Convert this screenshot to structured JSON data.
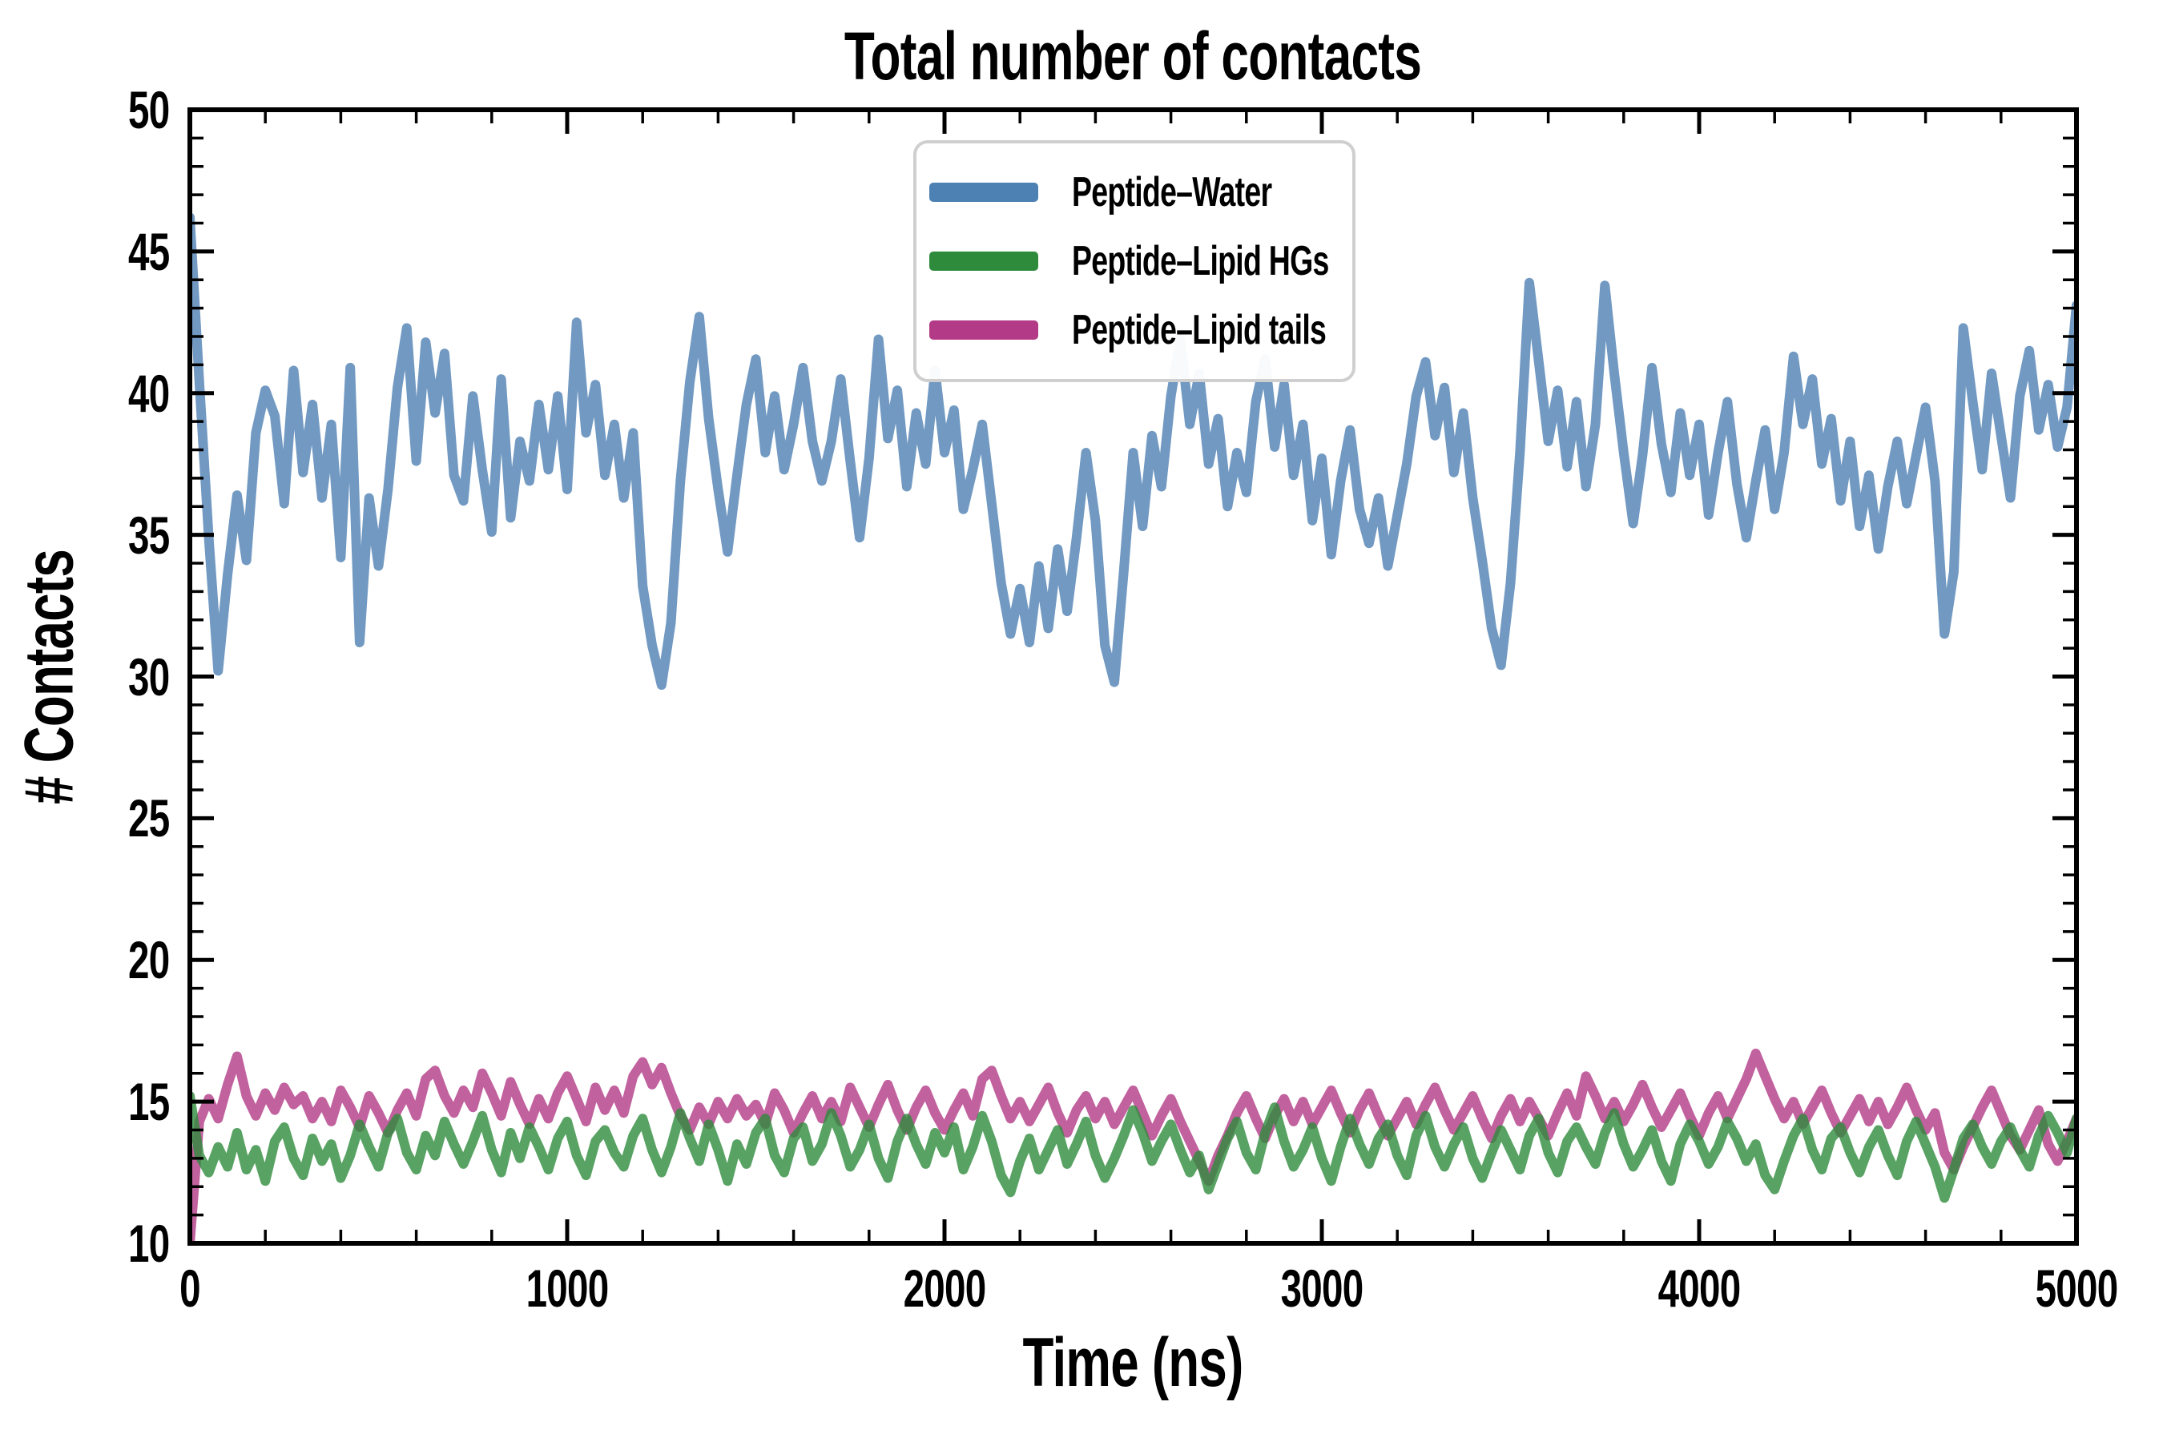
{
  "figure": {
    "background": "#FFFFFF",
    "axes_color": "#000000"
  },
  "chart_data": {
    "type": "line",
    "title": "Total number of contacts",
    "xlabel": "Time (ns)",
    "ylabel": "# Contacts",
    "x_range": [
      0,
      5000
    ],
    "y_range": [
      10,
      50
    ],
    "x_major_tick_step": 1000,
    "x_minor_tick_step": 200,
    "y_major_tick_step": 5,
    "y_minor_tick_step": 1,
    "x_tick_labels": [
      "0",
      "1000",
      "2000",
      "3000",
      "4000",
      "5000"
    ],
    "y_tick_labels": [
      "10",
      "15",
      "20",
      "25",
      "30",
      "35",
      "40",
      "45",
      "50"
    ],
    "grid": false,
    "ticks": {
      "direction": "in",
      "sides": [
        "top",
        "bottom",
        "left",
        "right"
      ]
    },
    "legend": {
      "position": "upper center",
      "border_color": "#CFCFCF",
      "background": "#FFFFFF"
    },
    "x_step_ns": 25,
    "line_width": 12,
    "line_opacity": 0.8,
    "draw_order": [
      0,
      2,
      1
    ],
    "series": [
      {
        "name": "Peptide–Water",
        "color": "#4D80B3",
        "mean_level": 37.5,
        "values": [
          46.2,
          40.4,
          34.9,
          30.2,
          33.6,
          36.4,
          34.1,
          38.6,
          40.1,
          39.2,
          36.1,
          40.8,
          37.2,
          39.6,
          36.3,
          38.9,
          34.2,
          40.9,
          31.2,
          36.3,
          33.9,
          36.6,
          40.2,
          42.3,
          37.6,
          41.8,
          39.3,
          41.4,
          37.1,
          36.2,
          39.9,
          37.3,
          35.1,
          40.5,
          35.6,
          38.3,
          36.9,
          39.6,
          37.3,
          39.9,
          36.6,
          42.5,
          38.6,
          40.3,
          37.1,
          38.9,
          36.3,
          38.6,
          33.2,
          31.1,
          29.7,
          31.9,
          36.9,
          40.4,
          42.7,
          39.1,
          36.6,
          34.4,
          37.1,
          39.6,
          41.2,
          37.9,
          39.9,
          37.3,
          38.9,
          40.9,
          38.3,
          36.9,
          38.3,
          40.5,
          37.6,
          34.9,
          37.7,
          41.9,
          38.4,
          40.1,
          36.7,
          39.3,
          37.5,
          40.8,
          37.9,
          39.4,
          35.9,
          37.3,
          38.9,
          36.1,
          33.3,
          31.5,
          33.1,
          31.2,
          33.9,
          31.7,
          34.5,
          32.3,
          34.9,
          37.9,
          35.5,
          31.1,
          29.8,
          33.7,
          37.9,
          35.3,
          38.5,
          36.7,
          39.9,
          41.9,
          38.9,
          40.7,
          37.5,
          39.1,
          36.0,
          37.9,
          36.5,
          39.7,
          41.2,
          38.1,
          40.3,
          37.1,
          38.9,
          35.5,
          37.7,
          34.3,
          36.9,
          38.7,
          35.9,
          34.7,
          36.3,
          33.9,
          35.7,
          37.5,
          39.9,
          41.1,
          38.5,
          40.2,
          37.2,
          39.3,
          36.3,
          34.1,
          31.7,
          30.4,
          33.3,
          37.9,
          43.9,
          41.1,
          38.3,
          40.1,
          37.4,
          39.7,
          36.7,
          38.9,
          43.8,
          40.7,
          37.9,
          35.4,
          37.8,
          40.9,
          38.2,
          36.5,
          39.3,
          37.1,
          38.9,
          35.7,
          37.9,
          39.7,
          36.8,
          34.9,
          36.9,
          38.7,
          35.9,
          37.9,
          41.3,
          38.9,
          40.5,
          37.5,
          39.1,
          36.2,
          38.3,
          35.3,
          37.1,
          34.5,
          36.7,
          38.3,
          36.1,
          37.8,
          39.5,
          36.9,
          31.5,
          33.7,
          42.3,
          39.7,
          37.3,
          40.7,
          38.5,
          36.3,
          39.9,
          41.5,
          38.7,
          40.3,
          38.1,
          39.5,
          43.1
        ]
      },
      {
        "name": "Peptide–Lipid HGs",
        "color": "#2E8B3C",
        "mean_level": 13.3,
        "values": [
          15.2,
          13.1,
          12.5,
          13.4,
          12.7,
          13.9,
          12.6,
          13.3,
          12.2,
          13.6,
          14.1,
          13.0,
          12.4,
          13.7,
          12.9,
          13.5,
          12.3,
          13.1,
          14.2,
          13.4,
          12.7,
          13.9,
          14.4,
          13.2,
          12.6,
          13.8,
          13.1,
          14.3,
          13.5,
          12.8,
          13.6,
          14.5,
          13.3,
          12.5,
          13.9,
          13.0,
          14.1,
          13.4,
          12.6,
          13.7,
          14.3,
          13.1,
          12.4,
          13.6,
          14.0,
          13.2,
          12.7,
          13.8,
          14.4,
          13.3,
          12.5,
          13.4,
          14.6,
          13.7,
          12.9,
          14.2,
          13.3,
          12.2,
          13.5,
          12.8,
          13.9,
          14.4,
          13.1,
          12.5,
          13.7,
          14.1,
          12.9,
          13.5,
          14.6,
          13.8,
          12.7,
          13.3,
          14.2,
          13.0,
          12.3,
          13.6,
          14.4,
          13.5,
          12.8,
          13.9,
          13.2,
          14.1,
          12.6,
          13.4,
          14.5,
          13.6,
          12.4,
          11.8,
          12.9,
          13.7,
          12.6,
          13.3,
          14.0,
          12.8,
          13.5,
          14.3,
          13.1,
          12.3,
          13.0,
          13.8,
          14.7,
          13.9,
          12.9,
          13.6,
          14.2,
          13.3,
          12.5,
          13.1,
          11.9,
          12.8,
          13.7,
          14.3,
          13.2,
          12.6,
          13.9,
          14.8,
          13.6,
          12.7,
          13.3,
          14.1,
          13.0,
          12.2,
          13.4,
          14.4,
          13.5,
          12.8,
          13.7,
          14.2,
          13.1,
          12.4,
          13.8,
          14.5,
          13.4,
          12.7,
          13.5,
          14.1,
          13.0,
          12.3,
          13.2,
          14.0,
          13.3,
          12.6,
          13.8,
          14.4,
          13.2,
          12.5,
          13.6,
          14.1,
          13.4,
          12.8,
          13.9,
          14.6,
          13.5,
          12.7,
          13.3,
          14.0,
          12.9,
          12.2,
          13.5,
          14.2,
          13.6,
          12.8,
          13.4,
          14.3,
          13.7,
          12.9,
          13.5,
          12.4,
          11.9,
          12.9,
          13.8,
          14.4,
          13.3,
          12.6,
          13.7,
          14.1,
          13.2,
          12.5,
          13.4,
          14.0,
          13.1,
          12.4,
          13.6,
          14.3,
          13.5,
          12.7,
          11.6,
          12.6,
          13.7,
          14.2,
          13.4,
          12.8,
          13.6,
          14.1,
          13.3,
          12.7,
          13.8,
          14.5,
          13.9,
          13.2,
          14.4
        ]
      },
      {
        "name": "Peptide–Lipid tails",
        "color": "#B23A86",
        "mean_level": 14.7,
        "values": [
          10.0,
          14.3,
          15.1,
          14.4,
          15.6,
          16.6,
          15.2,
          14.5,
          15.3,
          14.7,
          15.5,
          14.9,
          15.2,
          14.4,
          15.0,
          14.3,
          15.4,
          14.8,
          14.1,
          15.2,
          14.6,
          13.9,
          14.7,
          15.3,
          14.5,
          15.8,
          16.1,
          15.2,
          14.6,
          15.4,
          14.8,
          16.0,
          15.3,
          14.5,
          15.7,
          14.9,
          14.2,
          15.1,
          14.4,
          15.3,
          15.9,
          15.1,
          14.3,
          15.5,
          14.7,
          15.4,
          14.6,
          15.9,
          16.4,
          15.6,
          16.2,
          15.3,
          14.5,
          14.0,
          14.8,
          14.2,
          15.0,
          14.4,
          15.1,
          14.5,
          14.9,
          14.2,
          15.3,
          14.7,
          13.9,
          14.6,
          15.2,
          14.4,
          15.0,
          14.3,
          15.5,
          14.8,
          14.1,
          14.9,
          15.6,
          14.7,
          14.0,
          14.8,
          15.4,
          14.6,
          14.0,
          14.7,
          15.3,
          14.5,
          15.8,
          16.1,
          15.2,
          14.4,
          15.0,
          14.3,
          14.9,
          15.5,
          14.6,
          13.9,
          14.7,
          15.2,
          14.4,
          15.0,
          14.2,
          14.8,
          15.4,
          14.6,
          13.8,
          14.5,
          15.1,
          14.3,
          13.6,
          12.9,
          12.2,
          13.1,
          13.8,
          14.6,
          15.2,
          14.4,
          13.7,
          14.5,
          15.1,
          14.3,
          15.0,
          14.2,
          14.8,
          15.4,
          14.6,
          13.9,
          14.7,
          15.3,
          14.5,
          13.8,
          14.4,
          15.0,
          14.2,
          14.9,
          15.5,
          14.7,
          14.0,
          14.6,
          15.2,
          14.4,
          13.7,
          14.5,
          15.1,
          14.3,
          15.0,
          14.4,
          13.8,
          14.6,
          15.3,
          14.5,
          15.9,
          15.2,
          14.4,
          15.0,
          14.3,
          14.9,
          15.6,
          14.8,
          14.1,
          14.7,
          15.3,
          14.5,
          13.8,
          14.6,
          15.2,
          14.4,
          15.1,
          15.8,
          16.7,
          15.9,
          15.1,
          14.4,
          15.0,
          14.2,
          14.8,
          15.4,
          14.6,
          13.9,
          14.5,
          15.1,
          14.3,
          15.0,
          14.2,
          14.8,
          15.5,
          14.7,
          14.0,
          14.6,
          13.2,
          12.6,
          13.4,
          14.1,
          14.8,
          15.4,
          14.6,
          13.8,
          13.3,
          14.0,
          14.7,
          13.5,
          12.9,
          13.6,
          14.4
        ]
      }
    ]
  }
}
